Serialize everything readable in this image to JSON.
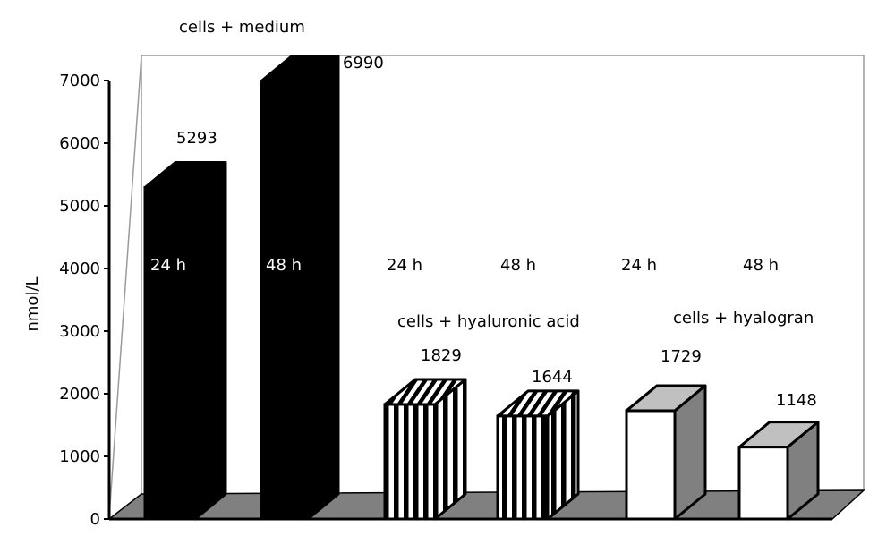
{
  "chart_data": {
    "type": "bar",
    "title": "",
    "xlabel": "",
    "ylabel": "nmol/L",
    "ylim": [
      0,
      7000
    ],
    "yticks": [
      0,
      1000,
      2000,
      3000,
      4000,
      5000,
      6000,
      7000
    ],
    "grid": false,
    "groups": [
      "cells + medium",
      "cells + hyaluronic acid",
      "cells + hyalogran"
    ],
    "categories": [
      "24 h",
      "48 h",
      "24 h",
      "48 h",
      "24 h",
      "48 h"
    ],
    "bars": [
      {
        "group": "cells + medium",
        "time": "24 h",
        "value": 5293,
        "fill": "black"
      },
      {
        "group": "cells + medium",
        "time": "48 h",
        "value": 6990,
        "fill": "black"
      },
      {
        "group": "cells + hyaluronic acid",
        "time": "24 h",
        "value": 1829,
        "fill": "striped"
      },
      {
        "group": "cells + hyaluronic acid",
        "time": "48 h",
        "value": 1644,
        "fill": "striped"
      },
      {
        "group": "cells + hyalogran",
        "time": "24 h",
        "value": 1729,
        "fill": "white"
      },
      {
        "group": "cells + hyalogran",
        "time": "48 h",
        "value": 1148,
        "fill": "white"
      }
    ],
    "value_labels": [
      "5293",
      "6990",
      "1829",
      "1644",
      "1729",
      "1148"
    ],
    "colors": {
      "floor": "#808080",
      "side_gray": "#808080",
      "top_gray": "#c0c0c0",
      "black": "#000000",
      "white": "#ffffff"
    }
  }
}
